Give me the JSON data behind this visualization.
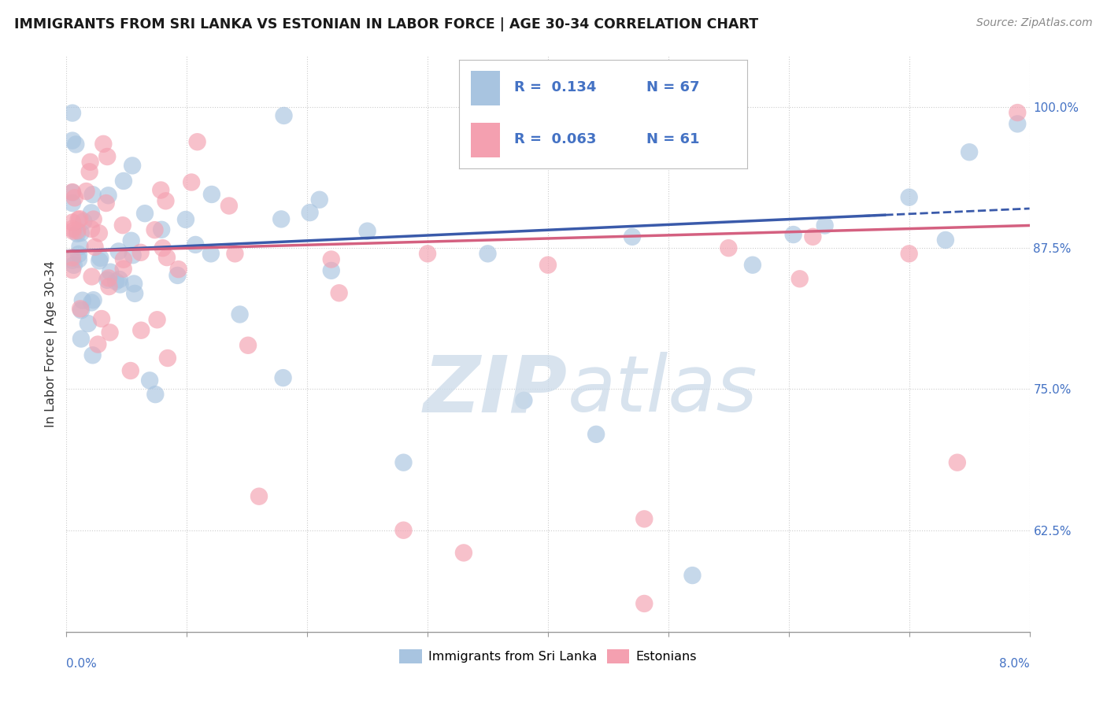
{
  "title": "IMMIGRANTS FROM SRI LANKA VS ESTONIAN IN LABOR FORCE | AGE 30-34 CORRELATION CHART",
  "source": "Source: ZipAtlas.com",
  "ylabel": "In Labor Force | Age 30-34",
  "ylabel_right_ticks": [
    0.625,
    0.75,
    0.875,
    1.0
  ],
  "ylabel_right_labels": [
    "62.5%",
    "75.0%",
    "87.5%",
    "100.0%"
  ],
  "xlim": [
    0.0,
    0.08
  ],
  "ylim": [
    0.535,
    1.045
  ],
  "legend_r1": "0.134",
  "legend_n1": "67",
  "legend_r2": "0.063",
  "legend_n2": "61",
  "blue_color": "#a8c4e0",
  "pink_color": "#f4a0b0",
  "line_blue": "#3a5aaa",
  "line_pink": "#d46080",
  "tick_color": "#4472c4",
  "watermark_zip": "ZIP",
  "watermark_atlas": "atlas"
}
